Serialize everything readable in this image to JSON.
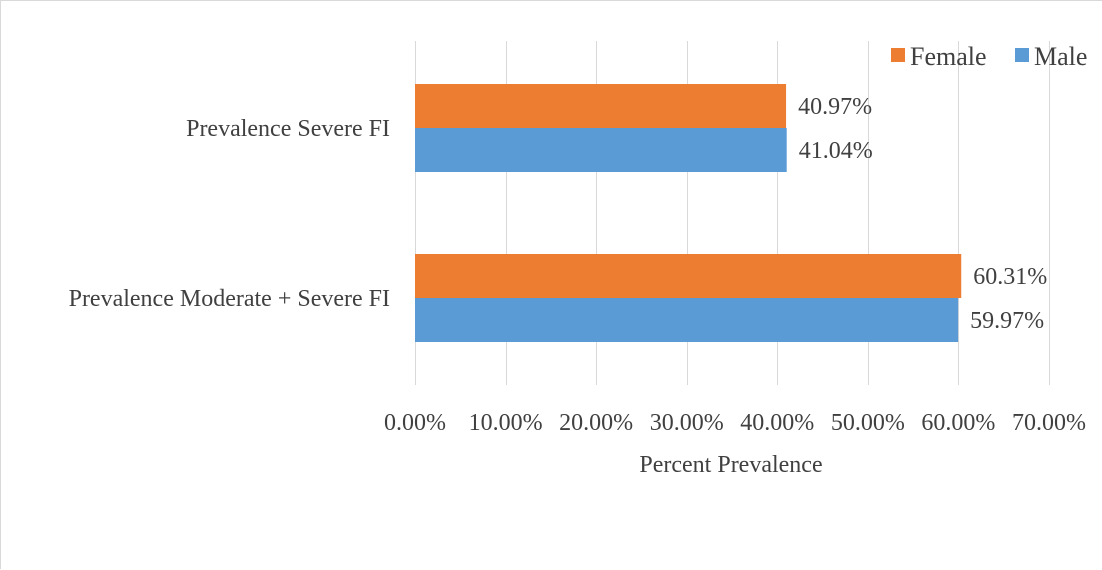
{
  "chart_data": {
    "type": "bar",
    "orientation": "horizontal",
    "categories": [
      "Prevalence Severe FI",
      "Prevalence Moderate + Severe FI"
    ],
    "series": [
      {
        "name": "Female",
        "values": [
          40.97,
          60.31
        ],
        "labels": [
          "40.97%",
          "60.31%"
        ],
        "color": "#ed7d31"
      },
      {
        "name": "Male",
        "values": [
          41.04,
          59.97
        ],
        "labels": [
          "41.04%",
          "59.97%"
        ],
        "color": "#5b9bd5"
      }
    ],
    "xlabel": "Percent Prevalence",
    "ylabel": "",
    "xlim": [
      0,
      70
    ],
    "x_ticks": [
      0,
      10,
      20,
      30,
      40,
      50,
      60,
      70
    ],
    "x_tick_labels": [
      "0.00%",
      "10.00%",
      "20.00%",
      "30.00%",
      "40.00%",
      "50.00%",
      "60.00%",
      "70.00%"
    ],
    "grid": true,
    "legend_position": "top-right",
    "legend_order": [
      "Female",
      "Male"
    ]
  }
}
